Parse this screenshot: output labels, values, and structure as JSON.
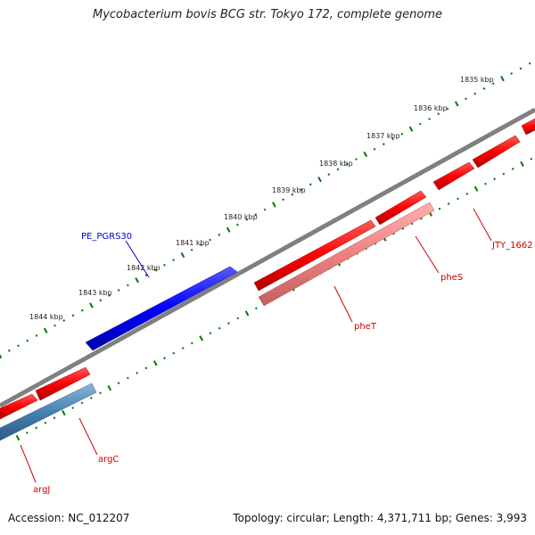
{
  "title": "Mycobacterium bovis BCG str. Tokyo 172, complete genome",
  "footer": {
    "accession": "Accession: NC_012207",
    "summary": "Topology: circular; Length: 4,371,711 bp; Genes: 3,993"
  },
  "colors": {
    "backbone": "#808080",
    "forward_gene": "#ff0000",
    "reverse_gene_red": "#ff0000",
    "reverse_gene_pink": "#f08080",
    "reverse_gene_blue": "#4682b4",
    "pe_pgrs_gene": "#0000ff",
    "tick": "#007700",
    "gene_label_red": "#cc0000",
    "gene_label_blue": "#0000cc"
  },
  "ruler": {
    "unit": "kbp",
    "labels": [
      "1835 kbp",
      "1836 kbp",
      "1837 kbp",
      "1838 kbp",
      "1839 kbp",
      "1840 kbp",
      "1841 kbp",
      "1842 kbp",
      "1843 kbp",
      "1844 kbp"
    ]
  },
  "genes": [
    {
      "label": "PE_PGRS30",
      "color": "blue"
    },
    {
      "label": "JTY_1662",
      "color": "red"
    },
    {
      "label": "pheS",
      "color": "red"
    },
    {
      "label": "pheT",
      "color": "red"
    },
    {
      "label": "argC",
      "color": "red"
    },
    {
      "label": "argJ",
      "color": "red"
    }
  ]
}
